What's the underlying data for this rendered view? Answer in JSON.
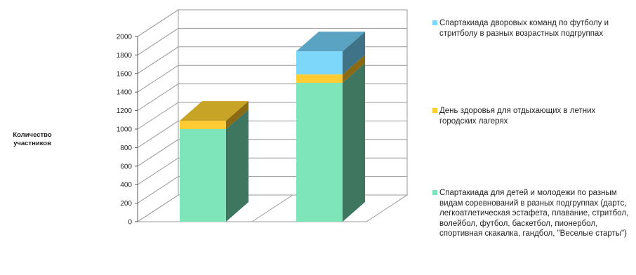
{
  "chart_data": {
    "type": "bar",
    "stacked": true,
    "three_d": true,
    "categories": [
      "",
      ""
    ],
    "ylabel": "Количество участников",
    "ylim": [
      0,
      2000
    ],
    "yticks": [
      0,
      200,
      400,
      600,
      800,
      1000,
      1200,
      1400,
      1600,
      1800,
      2000
    ],
    "grid": true,
    "legend_position": "right",
    "series": [
      {
        "name": "Спартакиада для детей и молодежи по разным видам соревнований в разных подгруппах (дартс, легкоатлетическая эстафета, плавание, стритбол, волейбол, футбол, баскетбол, пионербол, спортивная скакалка, гандбол, \"Веселые старты\")",
        "values": [
          1000,
          1500
        ],
        "color": "#7ee5bb",
        "side_color": "#3e7660"
      },
      {
        "name": "День здоровья для отдыхающих в летних городских лагерях",
        "values": [
          90,
          90
        ],
        "color": "#ffcc33",
        "side_color": "#8a6a12"
      },
      {
        "name": "Спартакиада дворовых команд по футболу и стритболу в разных возрастных подгруппах",
        "values": [
          0,
          250
        ],
        "color": "#7dd7fa",
        "side_color": "#3f7488"
      }
    ],
    "top_colors": [
      "#c7a426",
      "#5aa3c2"
    ]
  }
}
